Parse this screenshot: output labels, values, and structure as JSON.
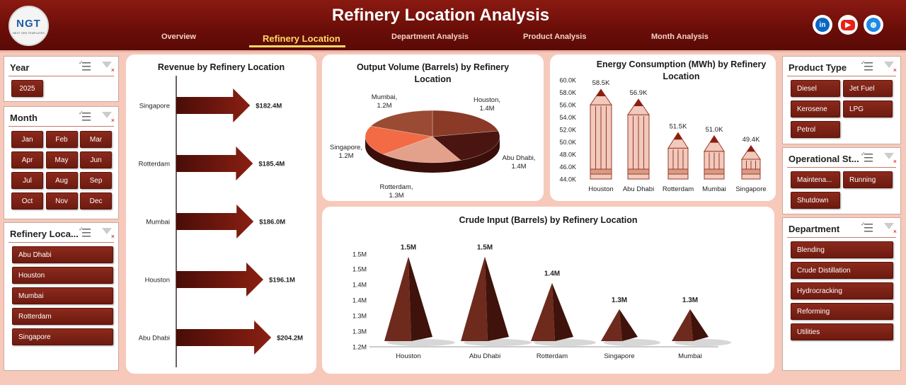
{
  "header": {
    "title": "Refinery Location Analysis",
    "logo_text": "NGT",
    "logo_sub": "NEXT GEN TEMPLATES",
    "nav": [
      "Overview",
      "Refinery Location",
      "Department Analysis",
      "Product Analysis",
      "Month Analysis"
    ],
    "active_nav": "Refinery Location",
    "social": [
      {
        "icon": "linkedin-icon",
        "label": "in",
        "color": "#0a66c2"
      },
      {
        "icon": "youtube-icon",
        "label": "▶",
        "color": "#e62117"
      },
      {
        "icon": "globe-icon",
        "label": "◍",
        "color": "#1e88e5"
      }
    ]
  },
  "slicers": {
    "year": {
      "title": "Year",
      "items": [
        "2025"
      ]
    },
    "month": {
      "title": "Month",
      "items": [
        "Jan",
        "Feb",
        "Mar",
        "Apr",
        "May",
        "Jun",
        "Jul",
        "Aug",
        "Sep",
        "Oct",
        "Nov",
        "Dec"
      ]
    },
    "location": {
      "title": "Refinery Loca...",
      "items": [
        "Abu Dhabi",
        "Houston",
        "Mumbai",
        "Rotterdam",
        "Singapore"
      ]
    },
    "product": {
      "title": "Product Type",
      "items": [
        "Diesel",
        "Jet Fuel",
        "Kerosene",
        "LPG",
        "Petrol"
      ]
    },
    "status": {
      "title": "Operational St...",
      "items": [
        "Maintena...",
        "Running",
        "Shutdown"
      ]
    },
    "department": {
      "title": "Department",
      "items": [
        "Blending",
        "Crude Distillation",
        "Hydrocracking",
        "Reforming",
        "Utilities"
      ]
    }
  },
  "colors": {
    "accent": "#7a1a10",
    "background": "#f6c9bb",
    "bar": "#6e1a10"
  },
  "chart_data": [
    {
      "type": "bar",
      "title": "Revenue by Refinery Location",
      "categories": [
        "Singapore",
        "Rotterdam",
        "Mumbai",
        "Houston",
        "Abu Dhabi"
      ],
      "values": [
        182.4,
        185.4,
        186.0,
        196.1,
        204.2
      ],
      "labels": [
        "$182.4M",
        "$185.4M",
        "$186.0M",
        "$196.1M",
        "$204.2M"
      ],
      "orientation": "horizontal"
    },
    {
      "type": "pie",
      "title": "Output Volume (Barrels) by Refinery Location",
      "slices": [
        {
          "name": "Houston",
          "label": "1.4M",
          "value": 1.4,
          "color": "#8a3a26"
        },
        {
          "name": "Abu Dhabi",
          "label": "1.4M",
          "value": 1.4,
          "color": "#4a1410"
        },
        {
          "name": "Rotterdam",
          "label": "1.3M",
          "value": 1.3,
          "color": "#e3a08a"
        },
        {
          "name": "Singapore",
          "label": "1.2M",
          "value": 1.2,
          "color": "#f26b45"
        },
        {
          "name": "Mumbai",
          "label": "1.2M",
          "value": 1.2,
          "color": "#9b4a34"
        }
      ]
    },
    {
      "type": "bar",
      "title": "Energy Consumption (MWh) by Refinery Location",
      "categories": [
        "Houston",
        "Abu Dhabi",
        "Rotterdam",
        "Mumbai",
        "Singapore"
      ],
      "values": [
        58.5,
        56.9,
        51.5,
        51.0,
        49.4
      ],
      "labels": [
        "58.5K",
        "56.9K",
        "51.5K",
        "51.0K",
        "49.4K"
      ],
      "yticks": [
        "60.0K",
        "58.0K",
        "56.0K",
        "54.0K",
        "52.0K",
        "50.0K",
        "48.0K",
        "46.0K",
        "44.0K"
      ],
      "ylim": [
        44,
        60
      ]
    },
    {
      "type": "bar",
      "title": "Crude Input (Barrels) by Refinery Location",
      "categories": [
        "Houston",
        "Abu Dhabi",
        "Rotterdam",
        "Singapore",
        "Mumbai"
      ],
      "values": [
        1.5,
        1.5,
        1.4,
        1.3,
        1.3
      ],
      "labels": [
        "1.5M",
        "1.5M",
        "1.4M",
        "1.3M",
        "1.3M"
      ],
      "yticks": [
        "1.5M",
        "1.5M",
        "1.4M",
        "1.4M",
        "1.3M",
        "1.3M",
        "1.2M"
      ],
      "ylim": [
        1.2,
        1.55
      ]
    }
  ]
}
